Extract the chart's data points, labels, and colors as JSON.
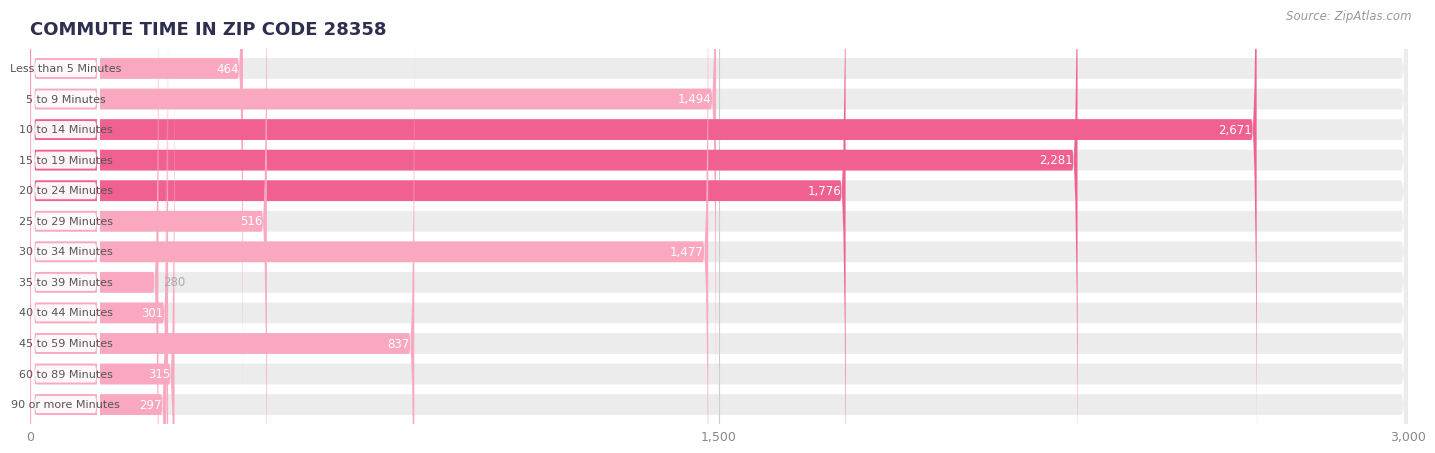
{
  "title": "COMMUTE TIME IN ZIP CODE 28358",
  "source_text": "Source: ZipAtlas.com",
  "categories": [
    "Less than 5 Minutes",
    "5 to 9 Minutes",
    "10 to 14 Minutes",
    "15 to 19 Minutes",
    "20 to 24 Minutes",
    "25 to 29 Minutes",
    "30 to 34 Minutes",
    "35 to 39 Minutes",
    "40 to 44 Minutes",
    "45 to 59 Minutes",
    "60 to 89 Minutes",
    "90 or more Minutes"
  ],
  "values": [
    464,
    1494,
    2671,
    2281,
    1776,
    516,
    1477,
    280,
    301,
    837,
    315,
    297
  ],
  "xlim": [
    0,
    3000
  ],
  "xticks": [
    0,
    1500,
    3000
  ],
  "bar_color_light": "#f9a8c0",
  "bar_color_dark": "#f06090",
  "bar_bg_color": "#ececec",
  "label_bg_color": "#ffffff",
  "label_text_color": "#555555",
  "title_color": "#2e2e4e",
  "source_color": "#999999",
  "value_label_color_inside": "#ffffff",
  "value_label_color_outside": "#aaaaaa",
  "background_color": "#ffffff",
  "title_fontsize": 13,
  "source_fontsize": 8.5,
  "bar_label_fontsize": 8,
  "value_fontsize": 8.5,
  "tick_fontsize": 9,
  "grid_color": "#cccccc"
}
